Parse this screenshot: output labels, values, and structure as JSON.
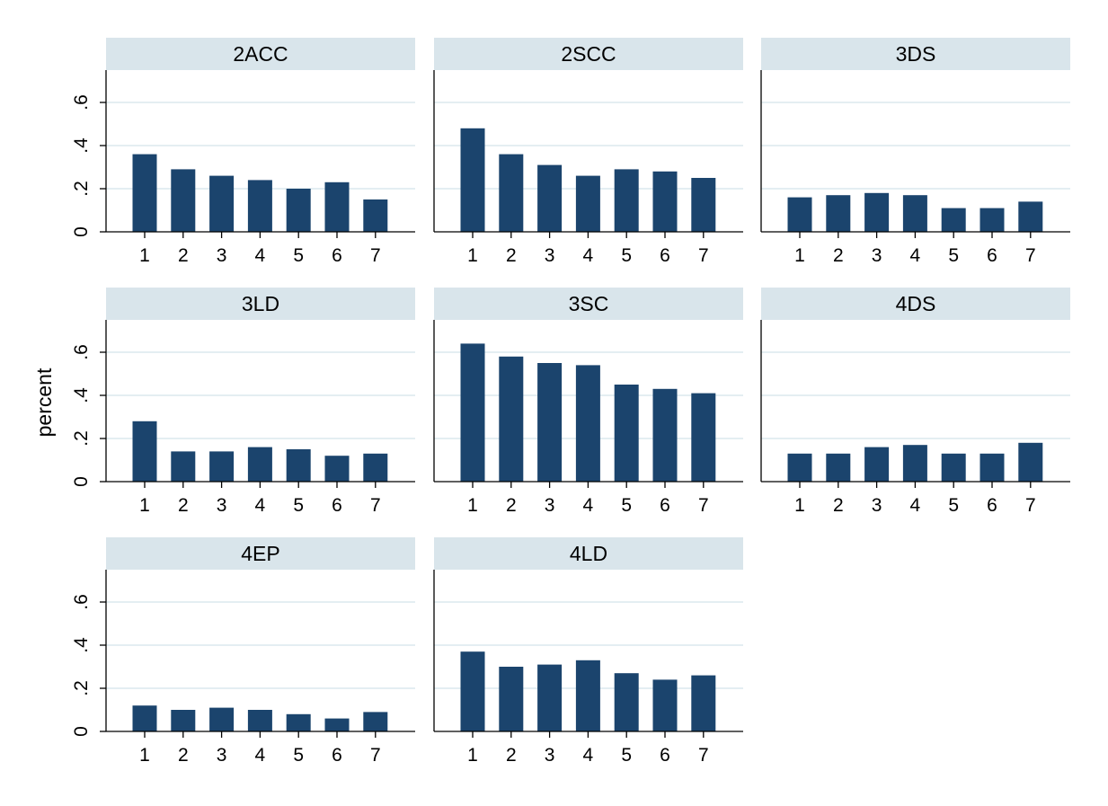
{
  "chart_data": {
    "type": "bar",
    "layout": "small-multiples",
    "columns": 3,
    "ylabel": "percent",
    "ylim": [
      0,
      0.75
    ],
    "yticks": [
      0,
      0.2,
      0.4,
      0.6
    ],
    "ytick_labels": [
      "0",
      ".2",
      ".4",
      ".6"
    ],
    "categories": [
      "1",
      "2",
      "3",
      "4",
      "5",
      "6",
      "7"
    ],
    "grid": true,
    "colors": {
      "bar": "#1b446d",
      "strip": "#d9e5eb",
      "grid": "#e4eef2",
      "axis": "#000000"
    },
    "panels": [
      {
        "title": "2ACC",
        "values": [
          0.36,
          0.29,
          0.26,
          0.24,
          0.2,
          0.23,
          0.15
        ]
      },
      {
        "title": "2SCC",
        "values": [
          0.48,
          0.36,
          0.31,
          0.26,
          0.29,
          0.28,
          0.25
        ]
      },
      {
        "title": "3DS",
        "values": [
          0.16,
          0.17,
          0.18,
          0.17,
          0.11,
          0.11,
          0.14
        ]
      },
      {
        "title": "3LD",
        "values": [
          0.28,
          0.14,
          0.14,
          0.16,
          0.15,
          0.12,
          0.13
        ]
      },
      {
        "title": "3SC",
        "values": [
          0.64,
          0.58,
          0.55,
          0.54,
          0.45,
          0.43,
          0.41
        ]
      },
      {
        "title": "4DS",
        "values": [
          0.13,
          0.13,
          0.16,
          0.17,
          0.13,
          0.13,
          0.18
        ]
      },
      {
        "title": "4EP",
        "values": [
          0.12,
          0.1,
          0.11,
          0.1,
          0.08,
          0.06,
          0.09
        ]
      },
      {
        "title": "4LD",
        "values": [
          0.37,
          0.3,
          0.31,
          0.33,
          0.27,
          0.24,
          0.26
        ]
      }
    ]
  }
}
